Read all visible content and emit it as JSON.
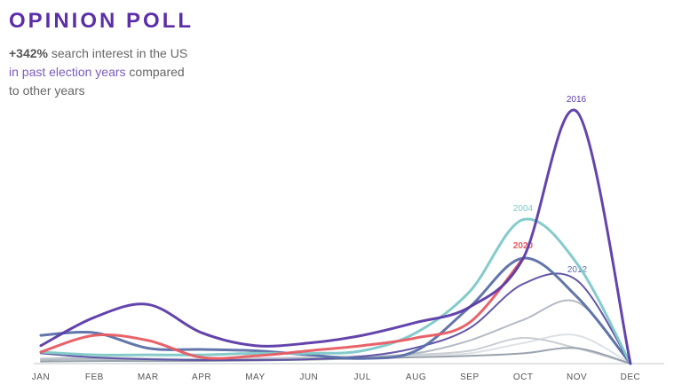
{
  "chart_data": {
    "type": "line",
    "title": "OPINION POLL",
    "subtitle": {
      "highlight": "+342%",
      "text1": "search interest in the US",
      "accent": "in past election years",
      "text2": "compared",
      "text3": "to other years"
    },
    "categories": [
      "JAN",
      "FEB",
      "MAR",
      "APR",
      "MAY",
      "JUN",
      "JUL",
      "AUG",
      "SEP",
      "OCT",
      "NOV",
      "DEC"
    ],
    "ylim": [
      0,
      100
    ],
    "series": [
      {
        "color": "#dde1e5",
        "values": [
          1,
          1.5,
          1.5,
          1.2,
          1.5,
          2,
          2,
          3,
          4,
          8,
          11,
          0
        ]
      },
      {
        "color": "#c9ced4",
        "values": [
          2,
          2.5,
          2,
          1.8,
          2,
          2.5,
          3,
          3.5,
          5,
          10,
          6,
          0
        ]
      },
      {
        "color": "#b4bbc3",
        "values": [
          1.5,
          1.8,
          1.6,
          1.5,
          1.8,
          2,
          2.4,
          4,
          9,
          17,
          24,
          0
        ]
      },
      {
        "color": "#9aa3ad",
        "values": [
          0.8,
          1,
          1,
          1,
          1.2,
          1.5,
          2,
          2.5,
          3,
          4,
          6,
          0
        ]
      },
      {
        "color": "#5b4fa3",
        "values": [
          4,
          2.4,
          1.7,
          1.4,
          1.4,
          1.7,
          2.8,
          6.2,
          13.8,
          31,
          32.4,
          0
        ]
      },
      {
        "name": "2012",
        "color": "#5a6fa8",
        "values": [
          11,
          12,
          6,
          5.5,
          5,
          3.4,
          2,
          5,
          22,
          41,
          26,
          0
        ]
      },
      {
        "name": "2004",
        "color": "#7ec8c8",
        "values": [
          4.5,
          3.4,
          3.4,
          3.4,
          4,
          4,
          5,
          12,
          28,
          56,
          39,
          0
        ]
      },
      {
        "name": "2020",
        "color": "#e85a62",
        "values": [
          4.5,
          11,
          9,
          2.4,
          3,
          5,
          7,
          10,
          16,
          41,
          null,
          null
        ]
      },
      {
        "name": "2016",
        "color": "#5b3aa8",
        "values": [
          7,
          18,
          23,
          12,
          7,
          8,
          11,
          16,
          22,
          41,
          98,
          0
        ]
      }
    ]
  }
}
